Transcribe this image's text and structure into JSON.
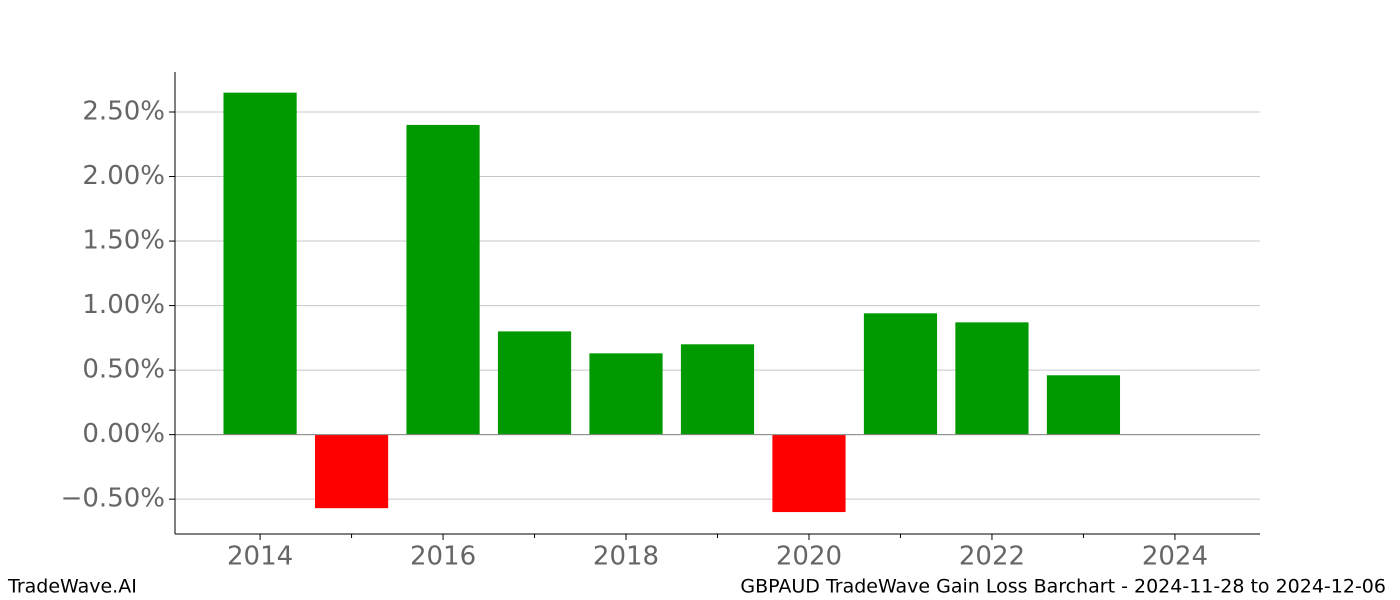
{
  "chart_data": {
    "type": "bar",
    "title": "GBPAUD TradeWave Gain Loss Barchart - 2024-11-28 to 2024-12-06",
    "brand": "TradeWave.AI",
    "x": [
      2014,
      2015,
      2016,
      2017,
      2018,
      2019,
      2020,
      2021,
      2022,
      2023
    ],
    "values": [
      2.65,
      -0.57,
      2.4,
      0.8,
      0.63,
      0.7,
      -0.6,
      0.94,
      0.87,
      0.46
    ],
    "colors": [
      "#009900",
      "#ff0000",
      "#009900",
      "#009900",
      "#009900",
      "#009900",
      "#ff0000",
      "#009900",
      "#009900",
      "#009900"
    ],
    "xlim": [
      2013.07,
      2024.93
    ],
    "xticks": [
      2014,
      2016,
      2018,
      2020,
      2022,
      2024
    ],
    "xticks_minor": [
      2015,
      2017,
      2019,
      2021,
      2023
    ],
    "ylim": [
      -0.77,
      2.81
    ],
    "yticks": [
      {
        "value": -0.5,
        "label": "−0.50%"
      },
      {
        "value": 0,
        "label": "0.00%"
      },
      {
        "value": 0.5,
        "label": "0.50%"
      },
      {
        "value": 1,
        "label": "1.00%"
      },
      {
        "value": 1.5,
        "label": "1.50%"
      },
      {
        "value": 2,
        "label": "2.00%"
      },
      {
        "value": 2.5,
        "label": "2.50%"
      }
    ],
    "grid": true
  }
}
